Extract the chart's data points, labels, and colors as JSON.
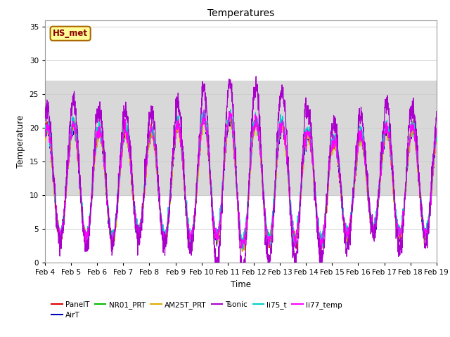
{
  "title": "Temperatures",
  "xlabel": "Time",
  "ylabel": "Temperature",
  "ylim": [
    0,
    36
  ],
  "yticks": [
    0,
    5,
    10,
    15,
    20,
    25,
    30,
    35
  ],
  "xlim_days": [
    4,
    19
  ],
  "date_ticks": [
    "Feb 4",
    "Feb 5",
    "Feb 6",
    "Feb 7",
    "Feb 8",
    "Feb 9",
    "Feb 10",
    "Feb 11",
    "Feb 12",
    "Feb 13",
    "Feb 14",
    "Feb 15",
    "Feb 16",
    "Feb 17",
    "Feb 18",
    "Feb 19"
  ],
  "series_colors": {
    "PanelT": "#dd0000",
    "AirT": "#0000bb",
    "NR01_PRT": "#00bb00",
    "AM25T_PRT": "#ddaa00",
    "Tsonic": "#aa00cc",
    "li75_t": "#00cccc",
    "li77_temp": "#ff00ff"
  },
  "legend_box_color": "#ffff99",
  "legend_box_edge": "#aa6600",
  "legend_box_text": "#880000",
  "legend_box_label": "HS_met",
  "bg_band_color": "#d8d8d8",
  "bg_band_y1": 10,
  "bg_band_y2": 27,
  "grid_color": "#cccccc",
  "spine_color": "#999999"
}
